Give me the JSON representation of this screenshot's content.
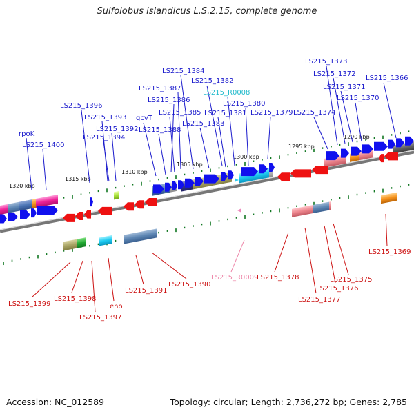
{
  "title": "Sulfolobus islandicus L.S.2.15, complete genome",
  "footer": {
    "accession": "Accession: NC_012589",
    "summary": "Topology: circular; Length: 2,736,272 bp; Genes: 2,785"
  },
  "colors": {
    "label_forward": "#1a1acc",
    "label_reverse": "#cc1111",
    "label_rna_forward": "#22bbcc",
    "label_rna_reverse": "#ee88aa",
    "backbone": "#888888",
    "tick": "#117722"
  },
  "scale_labels": [
    "1320 kbp",
    "1315 kbp",
    "1310 kbp",
    "1305 kbp",
    "1300 kbp",
    "1295 kbp",
    "1290 kbp"
  ],
  "forward_labels": [
    "rpoK",
    "LS215_1400",
    "LS215_1396",
    "LS215_1393",
    "LS215_1392",
    "LS215_1394",
    "gcvT",
    "LS215_1388",
    "LS215_1387",
    "LS215_1386",
    "LS215_1385",
    "LS215_1384",
    "LS215_1383",
    "LS215_1382",
    "LS215_1381",
    "LS215_R0008",
    "LS215_1380",
    "LS215_1379",
    "LS215_1374",
    "LS215_1373",
    "LS215_1372",
    "LS215_1371",
    "LS215_1370",
    "LS215_1366"
  ],
  "reverse_labels": [
    "LS215_1399",
    "LS215_1398",
    "LS215_1397",
    "eno",
    "LS215_1391",
    "LS215_1390",
    "LS215_R0009",
    "LS215_1378",
    "LS215_1377",
    "LS215_1376",
    "LS215_1375",
    "LS215_1369"
  ]
}
